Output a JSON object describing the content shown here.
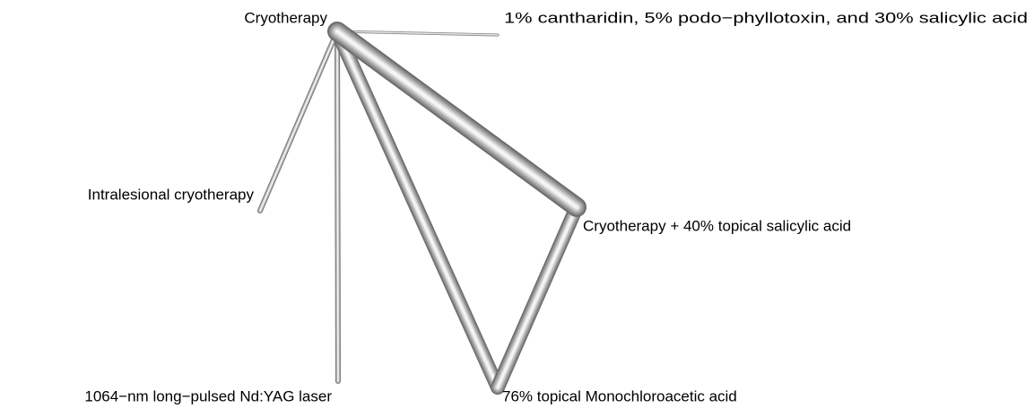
{
  "nodes": [
    {
      "label": "Cryotherapy"
    },
    {
      "label": "1% cantharidin, 5% podo−phyllotoxin, and 30% salicylic acid"
    },
    {
      "label": "Intralesional cryotherapy"
    },
    {
      "label": "Cryotherapy + 40% topical salicylic acid"
    },
    {
      "label": "1064−nm long−pulsed Nd:YAG laser"
    },
    {
      "label": "76% topical Monochloroacetic acid"
    }
  ]
}
